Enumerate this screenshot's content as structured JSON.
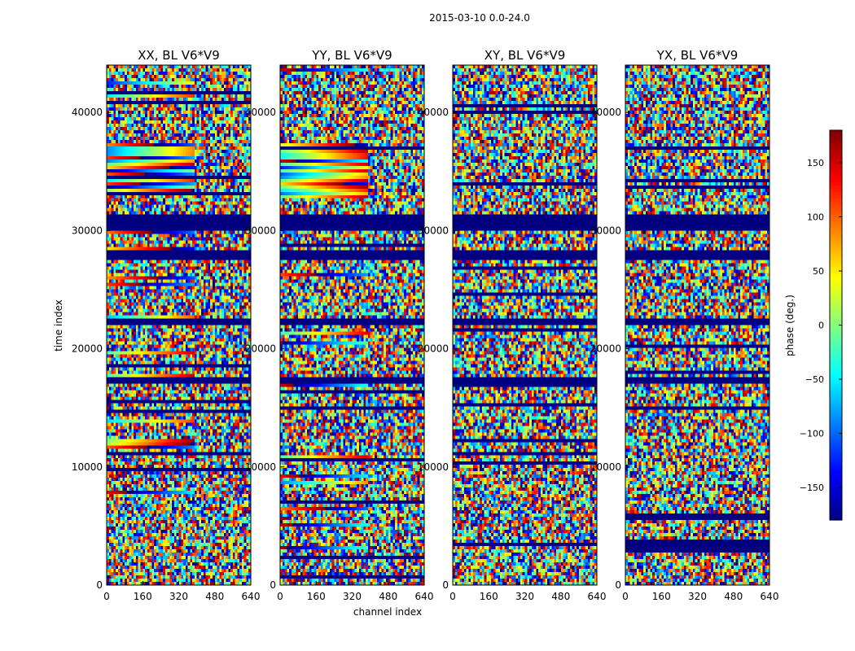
{
  "chart_data": {
    "type": "heatmap",
    "suptitle": "2015-03-10 0.0-24.0",
    "xlabel": "channel index",
    "ylabel": "time index",
    "xlim": [
      0,
      640
    ],
    "ylim": [
      0,
      44000
    ],
    "xticks": [
      0,
      160,
      320,
      480,
      640
    ],
    "yticks": [
      0,
      10000,
      20000,
      30000,
      40000
    ],
    "colormap": "jet",
    "colorbar": {
      "label": "phase (deg.)",
      "range": [
        -180,
        180
      ],
      "ticks": [
        -150,
        -100,
        -50,
        0,
        50,
        100,
        150
      ],
      "tick_labels": [
        "−150",
        "−100",
        "−50",
        "0",
        "50",
        "100",
        "150"
      ]
    },
    "panels": [
      {
        "title": "XX, BL V6*V9"
      },
      {
        "title": "YY, BL V6*V9"
      },
      {
        "title": "XY, BL V6*V9"
      },
      {
        "title": "YX, BL V6*V9"
      }
    ],
    "flagged_time_ranges": [
      [
        30000,
        31500
      ],
      [
        22000,
        22500
      ],
      [
        17000,
        17500
      ],
      [
        27500,
        28500
      ]
    ]
  }
}
